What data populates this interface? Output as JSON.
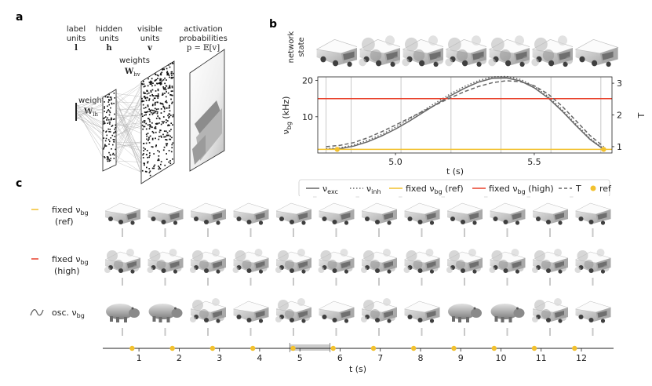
{
  "panel_letters": {
    "a": "a",
    "b": "b",
    "c": "c"
  },
  "panel_a": {
    "columns": [
      {
        "line1": "label",
        "line2": "units",
        "sym": "l"
      },
      {
        "line1": "hidden",
        "line2": "units",
        "sym": "h"
      },
      {
        "line1": "visible",
        "line2": "units",
        "sym": "v"
      },
      {
        "line1": "activation",
        "line2": "probabilities",
        "sym": "p = 𝔼[v]"
      }
    ],
    "weights_lh": {
      "label": "weights",
      "sym": "W",
      "sub": "lh"
    },
    "weights_hv": {
      "label": "weights",
      "sym": "W",
      "sub": "hv"
    }
  },
  "panel_b": {
    "row_label_1": "network",
    "row_label_2": "state",
    "ylabel_left": "ν",
    "ylabel_left_sub": "bg",
    "ylabel_left_unit": " (kHz)",
    "ylabel_right": "T",
    "xlabel": "t (s)"
  },
  "legend": {
    "exc": {
      "sym": "ν",
      "sub": "exc"
    },
    "inh": {
      "sym": "ν",
      "sub": "inh"
    },
    "ref": {
      "text": "fixed ν",
      "sub": "bg",
      "tail": " (ref)"
    },
    "high": {
      "text": "fixed ν",
      "sub": "bg",
      "tail": " (high)"
    },
    "T": "T",
    "refdot": "ref"
  },
  "panel_c": {
    "row_ref": {
      "line1": "fixed ν",
      "sub": "bg",
      "line2": "(ref)"
    },
    "row_high": {
      "line1": "fixed ν",
      "sub": "bg",
      "line2": "(high)"
    },
    "row_osc": {
      "line1": "osc. ν",
      "sub": "bg"
    },
    "xlabel": "t (s)",
    "highlight_interval_s": [
      4.75,
      5.75
    ],
    "osc_sample_classes": [
      "hippo",
      "hippo",
      "truck",
      "truck",
      "truck",
      "truck",
      "truck",
      "truck",
      "hippo",
      "hippo",
      "truck",
      "truck"
    ]
  },
  "colors": {
    "exc": "#666666",
    "inh": "#666666",
    "ref": "#f2c12e",
    "high": "#e8412c",
    "T": "#666666",
    "refdot": "#f2c12e",
    "grid": "#c8c8c8",
    "highlight": "#cccccc"
  },
  "chart_data": [
    {
      "type": "line",
      "title": "",
      "xlabel": "t (s)",
      "ylabel": "ν_bg (kHz)",
      "y2label": "T",
      "xlim": [
        4.72,
        5.78
      ],
      "ylim": [
        0,
        21
      ],
      "y2lim": [
        0.8,
        3.2
      ],
      "xticks": [
        5.0,
        5.5
      ],
      "yticks": [
        10,
        20
      ],
      "y2ticks": [
        1,
        2,
        3
      ],
      "image_sample_times": [
        4.75,
        4.84,
        4.93,
        5.02,
        5.11,
        5.2,
        5.29,
        5.38,
        5.47,
        5.56,
        5.65,
        5.74
      ],
      "series": [
        {
          "name": "ν_exc",
          "style": "solid",
          "axis": "left",
          "x": [
            4.75,
            4.8,
            4.85,
            4.9,
            4.95,
            5.0,
            5.05,
            5.1,
            5.15,
            5.2,
            5.25,
            5.3,
            5.35,
            5.4,
            5.45,
            5.5,
            5.55,
            5.6,
            5.65,
            5.7,
            5.75
          ],
          "y": [
            1,
            1.2,
            1.9,
            3.1,
            4.7,
            6.6,
            8.8,
            11.2,
            13.6,
            15.9,
            17.9,
            19.6,
            20.6,
            20.7,
            19.9,
            18.0,
            15.2,
            11.6,
            7.6,
            3.8,
            1
          ]
        },
        {
          "name": "ν_inh",
          "style": "dotted",
          "axis": "left",
          "x": [
            4.75,
            4.8,
            4.85,
            4.9,
            4.95,
            5.0,
            5.05,
            5.1,
            5.15,
            5.2,
            5.25,
            5.3,
            5.35,
            5.4,
            5.45,
            5.5,
            5.55,
            5.6,
            5.65,
            5.7,
            5.75
          ],
          "y": [
            1.2,
            1.4,
            2.2,
            3.5,
            5.1,
            7.1,
            9.3,
            11.7,
            14.1,
            16.4,
            18.4,
            20.0,
            21.0,
            21.1,
            20.3,
            18.4,
            15.6,
            12.0,
            8.0,
            4.1,
            1.2
          ]
        },
        {
          "name": "fixed ν_bg (ref)",
          "style": "solid",
          "axis": "left",
          "x": [
            4.72,
            5.78
          ],
          "y": [
            1,
            1
          ]
        },
        {
          "name": "fixed ν_bg (high)",
          "style": "solid",
          "axis": "left",
          "x": [
            4.72,
            5.78
          ],
          "y": [
            15,
            15
          ]
        },
        {
          "name": "T",
          "style": "dashed",
          "axis": "right",
          "x": [
            4.75,
            4.8,
            4.85,
            4.9,
            4.95,
            5.0,
            5.05,
            5.1,
            5.15,
            5.2,
            5.25,
            5.3,
            5.35,
            5.4,
            5.45,
            5.5,
            5.55,
            5.6,
            5.65,
            5.7,
            5.75
          ],
          "y": [
            1.0,
            1.04,
            1.13,
            1.28,
            1.47,
            1.68,
            1.9,
            2.12,
            2.34,
            2.55,
            2.74,
            2.9,
            3.02,
            3.08,
            3.05,
            2.92,
            2.66,
            2.28,
            1.82,
            1.36,
            1.0
          ]
        },
        {
          "name": "ref",
          "style": "marker",
          "axis": "left",
          "x": [
            4.79,
            5.75
          ],
          "y": [
            1,
            1
          ]
        }
      ]
    },
    {
      "type": "scatter",
      "title": "",
      "xlabel": "t (s)",
      "xlim": [
        0.1,
        12.8
      ],
      "xticks": [
        1,
        2,
        3,
        4,
        5,
        6,
        7,
        8,
        9,
        10,
        11,
        12
      ],
      "series": [
        {
          "name": "ref samples",
          "x": [
            0.83,
            1.83,
            2.83,
            3.83,
            4.83,
            5.83,
            6.83,
            7.83,
            8.83,
            9.83,
            10.83,
            11.83
          ]
        }
      ]
    }
  ]
}
